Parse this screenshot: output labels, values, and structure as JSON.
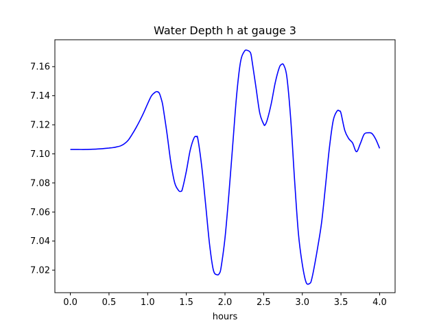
{
  "chart_data": {
    "type": "line",
    "title": "Water Depth h at gauge 3",
    "xlabel": "hours",
    "ylabel": "",
    "xlim": [
      -0.2,
      4.2
    ],
    "ylim": [
      7.0045,
      7.1785
    ],
    "xticks": [
      "0.0",
      "0.5",
      "1.0",
      "1.5",
      "2.0",
      "2.5",
      "3.0",
      "3.5",
      "4.0"
    ],
    "xtick_values": [
      0.0,
      0.5,
      1.0,
      1.5,
      2.0,
      2.5,
      3.0,
      3.5,
      4.0
    ],
    "yticks": [
      "7.02",
      "7.04",
      "7.06",
      "7.08",
      "7.10",
      "7.12",
      "7.14",
      "7.16"
    ],
    "ytick_values": [
      7.02,
      7.04,
      7.06,
      7.08,
      7.1,
      7.12,
      7.14,
      7.16
    ],
    "grid": false,
    "series": [
      {
        "color": "#0000ff",
        "x": [
          0.0,
          0.1,
          0.2,
          0.3,
          0.4,
          0.5,
          0.55,
          0.6,
          0.65,
          0.7,
          0.75,
          0.8,
          0.85,
          0.9,
          0.95,
          1.0,
          1.05,
          1.1,
          1.12,
          1.15,
          1.18,
          1.2,
          1.25,
          1.3,
          1.35,
          1.4,
          1.43,
          1.45,
          1.5,
          1.55,
          1.6,
          1.63,
          1.65,
          1.7,
          1.75,
          1.8,
          1.85,
          1.9,
          1.93,
          1.95,
          2.0,
          2.05,
          2.1,
          2.15,
          2.2,
          2.25,
          2.29,
          2.33,
          2.35,
          2.4,
          2.45,
          2.5,
          2.52,
          2.55,
          2.6,
          2.65,
          2.7,
          2.73,
          2.76,
          2.8,
          2.85,
          2.9,
          2.95,
          3.0,
          3.05,
          3.1,
          3.12,
          3.15,
          3.2,
          3.25,
          3.3,
          3.35,
          3.4,
          3.45,
          3.48,
          3.5,
          3.55,
          3.6,
          3.65,
          3.7,
          3.75,
          3.8,
          3.85,
          3.9,
          3.95,
          4.0
        ],
        "y": [
          7.103,
          7.103,
          7.103,
          7.1032,
          7.1035,
          7.104,
          7.1043,
          7.1048,
          7.1055,
          7.107,
          7.1095,
          7.1135,
          7.118,
          7.123,
          7.1285,
          7.1345,
          7.14,
          7.1425,
          7.1428,
          7.1418,
          7.137,
          7.132,
          7.114,
          7.094,
          7.08,
          7.0748,
          7.0742,
          7.076,
          7.088,
          7.1025,
          7.111,
          7.1118,
          7.11,
          7.091,
          7.065,
          7.038,
          7.02,
          7.0168,
          7.018,
          7.022,
          7.042,
          7.072,
          7.106,
          7.14,
          7.163,
          7.1705,
          7.1712,
          7.1695,
          7.164,
          7.146,
          7.128,
          7.1205,
          7.12,
          7.124,
          7.135,
          7.149,
          7.159,
          7.1615,
          7.161,
          7.153,
          7.124,
          7.082,
          7.045,
          7.024,
          7.0115,
          7.011,
          7.0135,
          7.021,
          7.036,
          7.053,
          7.078,
          7.104,
          7.123,
          7.1295,
          7.1295,
          7.128,
          7.116,
          7.1105,
          7.1075,
          7.1015,
          7.107,
          7.1135,
          7.1145,
          7.114,
          7.11,
          7.1038
        ]
      }
    ]
  }
}
